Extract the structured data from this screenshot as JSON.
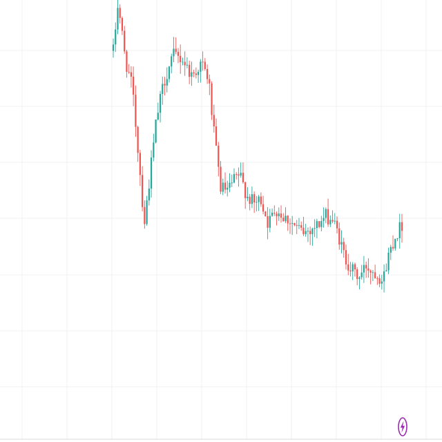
{
  "chart_data": {
    "type": "candlestick",
    "title": "",
    "xlabel": "",
    "ylabel": "",
    "ylim": [
      0,
      100
    ],
    "grid": true,
    "legend": "none",
    "colors": {
      "up": "#26a69a",
      "down": "#ef5350",
      "grid": "#f0f0f3",
      "badge": "#9c27b0"
    },
    "badge_icon": "lightning-bolt-icon",
    "anchors": [
      [
        0,
        88
      ],
      [
        2,
        100
      ],
      [
        5,
        86
      ],
      [
        8,
        79
      ],
      [
        11,
        60
      ],
      [
        13,
        46
      ],
      [
        15,
        56
      ],
      [
        18,
        71
      ],
      [
        21,
        80
      ],
      [
        25,
        87
      ],
      [
        29,
        86
      ],
      [
        33,
        82
      ],
      [
        37,
        85
      ],
      [
        40,
        81
      ],
      [
        42,
        69
      ],
      [
        45,
        55
      ],
      [
        48,
        54
      ],
      [
        51,
        57
      ],
      [
        53,
        58
      ],
      [
        56,
        53
      ],
      [
        59,
        51
      ],
      [
        62,
        52
      ],
      [
        65,
        46
      ],
      [
        68,
        50
      ],
      [
        71,
        48
      ],
      [
        74,
        47
      ],
      [
        77,
        45
      ],
      [
        80,
        44
      ],
      [
        83,
        45
      ],
      [
        86,
        46
      ],
      [
        89,
        48
      ],
      [
        92,
        47
      ],
      [
        94,
        44
      ],
      [
        97,
        38
      ],
      [
        100,
        35
      ],
      [
        103,
        33
      ],
      [
        106,
        36
      ],
      [
        108,
        35
      ],
      [
        111,
        34
      ],
      [
        113,
        32
      ],
      [
        115,
        38
      ],
      [
        118,
        43
      ],
      [
        121,
        46
      ]
    ],
    "volatility": 1.6,
    "candle_count": 130
  }
}
